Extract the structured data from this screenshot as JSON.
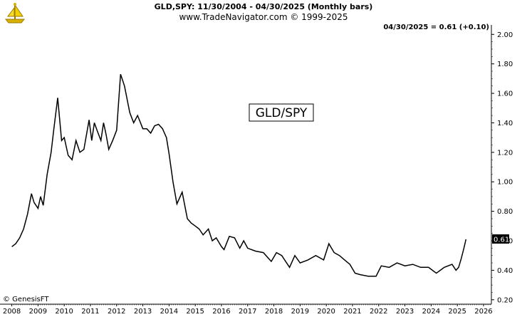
{
  "header": {
    "title": "GLD,SPY:  11/30/2004 - 04/30/2025  (Monthly bars)",
    "subtitle": "www.TradeNavigator.com © 1999-2025"
  },
  "readout": "04/30/2025 = 0.61 (+0.10)",
  "footer": "© GenesisFT",
  "chart_data": {
    "type": "line",
    "title": "GLD/SPY",
    "series": [
      {
        "name": "GLD/SPY",
        "x": [
          2008.0,
          2008.15,
          2008.3,
          2008.45,
          2008.6,
          2008.75,
          2008.85,
          2009.0,
          2009.1,
          2009.2,
          2009.35,
          2009.5,
          2009.6,
          2009.75,
          2009.9,
          2010.0,
          2010.15,
          2010.3,
          2010.45,
          2010.6,
          2010.75,
          2010.95,
          2011.05,
          2011.15,
          2011.25,
          2011.4,
          2011.5,
          2011.6,
          2011.7,
          2011.85,
          2012.0,
          2012.15,
          2012.3,
          2012.5,
          2012.65,
          2012.8,
          2013.0,
          2013.15,
          2013.3,
          2013.45,
          2013.6,
          2013.75,
          2013.9,
          2014.0,
          2014.15,
          2014.3,
          2014.5,
          2014.7,
          2014.85,
          2015.0,
          2015.15,
          2015.3,
          2015.5,
          2015.65,
          2015.8,
          2016.0,
          2016.1,
          2016.3,
          2016.5,
          2016.7,
          2016.85,
          2017.0,
          2017.3,
          2017.6,
          2017.9,
          2018.1,
          2018.3,
          2018.6,
          2018.8,
          2019.0,
          2019.3,
          2019.6,
          2019.9,
          2020.1,
          2020.3,
          2020.5,
          2020.7,
          2020.9,
          2021.1,
          2021.3,
          2021.6,
          2021.9,
          2022.1,
          2022.4,
          2022.7,
          2023.0,
          2023.3,
          2023.6,
          2023.9,
          2024.2,
          2024.5,
          2024.8,
          2024.95,
          2025.05,
          2025.15,
          2025.25,
          2025.33
        ],
        "y": [
          0.56,
          0.58,
          0.62,
          0.68,
          0.78,
          0.92,
          0.86,
          0.82,
          0.9,
          0.84,
          1.05,
          1.2,
          1.35,
          1.57,
          1.28,
          1.3,
          1.18,
          1.15,
          1.28,
          1.2,
          1.22,
          1.42,
          1.28,
          1.4,
          1.35,
          1.28,
          1.4,
          1.32,
          1.22,
          1.28,
          1.35,
          1.73,
          1.65,
          1.47,
          1.4,
          1.45,
          1.36,
          1.36,
          1.33,
          1.38,
          1.39,
          1.36,
          1.3,
          1.19,
          1.0,
          0.85,
          0.93,
          0.75,
          0.72,
          0.7,
          0.68,
          0.64,
          0.68,
          0.6,
          0.62,
          0.56,
          0.54,
          0.63,
          0.62,
          0.55,
          0.6,
          0.55,
          0.53,
          0.52,
          0.46,
          0.52,
          0.5,
          0.42,
          0.5,
          0.45,
          0.47,
          0.5,
          0.47,
          0.58,
          0.52,
          0.5,
          0.47,
          0.44,
          0.38,
          0.37,
          0.36,
          0.36,
          0.43,
          0.42,
          0.45,
          0.43,
          0.44,
          0.42,
          0.42,
          0.38,
          0.42,
          0.44,
          0.4,
          0.42,
          0.48,
          0.55,
          0.61
        ]
      }
    ],
    "xlim": [
      2007.55,
      2026.3
    ],
    "ylim": [
      0.17,
      2.04
    ],
    "xticks": [
      "2008",
      "2009",
      "2010",
      "2011",
      "2012",
      "2013",
      "2014",
      "2015",
      "2016",
      "2017",
      "2018",
      "2019",
      "2020",
      "2021",
      "2022",
      "2023",
      "2024",
      "2025",
      "2026"
    ],
    "yticks": [
      "0.20",
      "0.40",
      "0.60",
      "0.80",
      "1.00",
      "1.20",
      "1.40",
      "1.60",
      "1.80",
      "2.00"
    ],
    "last_value_label": "0.61",
    "grid": false,
    "legend": "none",
    "colors": {
      "line": "#000000",
      "axis": "#000000",
      "label_box": "#000000",
      "label_text": "#ffffff"
    }
  }
}
